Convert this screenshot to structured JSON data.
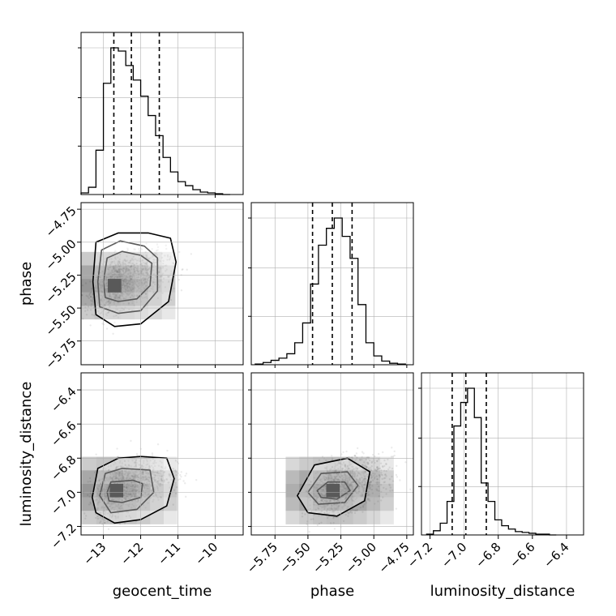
{
  "chart_data": {
    "type": "corner",
    "parameters": [
      "geocent_time",
      "phase",
      "luminosity_distance"
    ],
    "grid": true,
    "marginals": [
      {
        "parameter": "geocent_time",
        "xlim": [
          -13.6,
          -9.25
        ],
        "quantiles": [
          -12.72,
          -12.25,
          -11.5
        ],
        "ticks": [
          -13,
          -12,
          -11,
          -10
        ],
        "tick_labels": [
          "−13",
          "−12",
          "−11",
          "−10"
        ],
        "bin_edges": [
          -13.6,
          -13.4,
          -13.2,
          -13.0,
          -12.8,
          -12.6,
          -12.4,
          -12.2,
          -12.0,
          -11.8,
          -11.6,
          -11.4,
          -11.2,
          -11.0,
          -10.8,
          -10.6,
          -10.4,
          -10.2,
          -10.0,
          -9.8,
          -9.6
        ],
        "counts": [
          2,
          9,
          55,
          138,
          182,
          178,
          160,
          142,
          122,
          98,
          73,
          46,
          28,
          16,
          11,
          6,
          3,
          2,
          1,
          0
        ]
      },
      {
        "parameter": "phase",
        "xlim": [
          -5.93,
          -4.7
        ],
        "quantiles": [
          -5.465,
          -5.315,
          -5.165
        ],
        "ticks": [
          -5.75,
          -5.5,
          -5.25,
          -5.0,
          -4.75
        ],
        "tick_labels": [
          "−5.75",
          "−5.50",
          "−5.25",
          "−5.00",
          "−4.75"
        ],
        "bin_edges": [
          -5.9,
          -5.84,
          -5.78,
          -5.72,
          -5.66,
          -5.6,
          -5.54,
          -5.48,
          -5.42,
          -5.36,
          -5.3,
          -5.24,
          -5.18,
          -5.12,
          -5.06,
          -5.0,
          -4.94,
          -4.88,
          -4.82,
          -4.76
        ],
        "counts": [
          1,
          3,
          6,
          9,
          15,
          30,
          57,
          110,
          163,
          186,
          200,
          175,
          145,
          82,
          30,
          12,
          5,
          2,
          1
        ]
      },
      {
        "parameter": "luminosity_distance",
        "xlim": [
          -7.25,
          -6.3
        ],
        "quantiles": [
          -7.07,
          -6.99,
          -6.87
        ],
        "ticks": [
          -7.2,
          -7.0,
          -6.8,
          -6.6,
          -6.4
        ],
        "tick_labels": [
          "−7.2",
          "−7.0",
          "−6.8",
          "−6.6",
          "−6.4"
        ],
        "bin_edges": [
          -7.22,
          -7.18,
          -7.14,
          -7.1,
          -7.06,
          -7.02,
          -6.98,
          -6.94,
          -6.9,
          -6.86,
          -6.82,
          -6.78,
          -6.74,
          -6.7,
          -6.66,
          -6.62,
          -6.58,
          -6.54,
          -6.5,
          -6.46
        ],
        "counts": [
          1,
          5,
          14,
          40,
          130,
          158,
          175,
          140,
          62,
          40,
          18,
          11,
          7,
          4,
          3,
          2,
          1,
          1,
          0
        ]
      }
    ],
    "joints": [
      {
        "x": "geocent_time",
        "y": "phase",
        "xlim": [
          -13.6,
          -9.25
        ],
        "ylim": [
          -5.93,
          -4.7
        ],
        "y_ticks": [
          -5.75,
          -5.5,
          -5.25,
          -5.0,
          -4.75
        ],
        "y_tick_labels": [
          "−5.75",
          "−5.50",
          "−5.25",
          "−5.00",
          "−4.75"
        ],
        "mode": [
          -12.7,
          -5.33
        ],
        "contour_levels": [
          [
            [
              -13.0,
              -5.3
            ],
            [
              -12.9,
              -5.12
            ],
            [
              -12.5,
              -5.07
            ],
            [
              -12.0,
              -5.1
            ],
            [
              -11.7,
              -5.16
            ],
            [
              -11.75,
              -5.33
            ],
            [
              -12.1,
              -5.43
            ],
            [
              -12.6,
              -5.45
            ],
            [
              -12.95,
              -5.42
            ]
          ],
          [
            [
              -13.15,
              -5.3
            ],
            [
              -13.05,
              -5.06
            ],
            [
              -12.55,
              -4.99
            ],
            [
              -11.9,
              -5.03
            ],
            [
              -11.55,
              -5.12
            ],
            [
              -11.55,
              -5.37
            ],
            [
              -12.0,
              -5.52
            ],
            [
              -12.6,
              -5.54
            ],
            [
              -13.1,
              -5.49
            ]
          ],
          [
            [
              -13.28,
              -5.3
            ],
            [
              -13.2,
              -5.0
            ],
            [
              -12.6,
              -4.93
            ],
            [
              -11.8,
              -4.93
            ],
            [
              -11.2,
              -4.97
            ],
            [
              -11.05,
              -5.15
            ],
            [
              -11.25,
              -5.45
            ],
            [
              -12.0,
              -5.62
            ],
            [
              -12.7,
              -5.64
            ],
            [
              -13.2,
              -5.55
            ]
          ]
        ]
      },
      {
        "x": "geocent_time",
        "y": "luminosity_distance",
        "xlim": [
          -13.6,
          -9.25
        ],
        "ylim": [
          -7.25,
          -6.3
        ],
        "y_ticks": [
          -7.2,
          -7.0,
          -6.8,
          -6.6,
          -6.4
        ],
        "y_tick_labels": [
          "−7.2",
          "−7.0",
          "−6.8",
          "−6.6",
          "−6.4"
        ],
        "mode": [
          -12.65,
          -6.99
        ],
        "contour_levels": [
          [
            [
              -12.9,
              -7.0
            ],
            [
              -12.8,
              -6.94
            ],
            [
              -12.2,
              -6.93
            ],
            [
              -11.95,
              -6.95
            ],
            [
              -12.0,
              -7.03
            ],
            [
              -12.5,
              -7.06
            ],
            [
              -12.85,
              -7.05
            ]
          ],
          [
            [
              -13.1,
              -7.02
            ],
            [
              -12.95,
              -6.89
            ],
            [
              -12.5,
              -6.86
            ],
            [
              -11.75,
              -6.87
            ],
            [
              -11.65,
              -7.0
            ],
            [
              -12.1,
              -7.1
            ],
            [
              -12.8,
              -7.12
            ]
          ],
          [
            [
              -13.3,
              -7.03
            ],
            [
              -13.15,
              -6.86
            ],
            [
              -12.6,
              -6.8
            ],
            [
              -12.0,
              -6.79
            ],
            [
              -11.3,
              -6.8
            ],
            [
              -11.1,
              -6.92
            ],
            [
              -11.3,
              -7.08
            ],
            [
              -12.0,
              -7.16
            ],
            [
              -12.7,
              -7.18
            ],
            [
              -13.2,
              -7.12
            ]
          ]
        ]
      },
      {
        "x": "phase",
        "y": "luminosity_distance",
        "xlim": [
          -5.93,
          -4.7
        ],
        "ylim": [
          -7.25,
          -6.3
        ],
        "mode": [
          -5.31,
          -6.99
        ],
        "contour_levels": [
          [
            [
              -5.43,
              -6.99
            ],
            [
              -5.35,
              -6.94
            ],
            [
              -5.22,
              -6.94
            ],
            [
              -5.18,
              -6.99
            ],
            [
              -5.28,
              -7.04
            ],
            [
              -5.4,
              -7.03
            ]
          ],
          [
            [
              -5.5,
              -7.0
            ],
            [
              -5.4,
              -6.89
            ],
            [
              -5.2,
              -6.88
            ],
            [
              -5.12,
              -6.96
            ],
            [
              -5.22,
              -7.06
            ],
            [
              -5.42,
              -7.07
            ]
          ],
          [
            [
              -5.58,
              -7.02
            ],
            [
              -5.45,
              -6.84
            ],
            [
              -5.2,
              -6.8
            ],
            [
              -5.03,
              -6.88
            ],
            [
              -5.07,
              -7.05
            ],
            [
              -5.28,
              -7.14
            ],
            [
              -5.5,
              -7.12
            ]
          ]
        ]
      }
    ]
  }
}
